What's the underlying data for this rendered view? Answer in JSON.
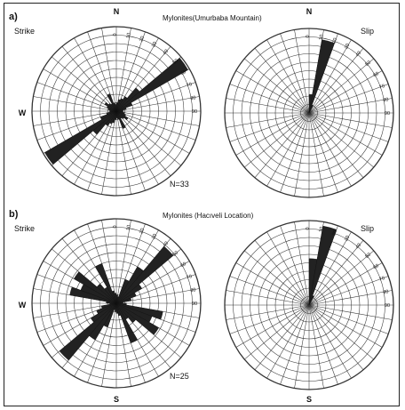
{
  "chart_data": [
    {
      "type": "rose",
      "panel_label": "a)",
      "subtitle": "Mylonites(Umurbaba Mountain)",
      "left_label": "Strike",
      "right_label": "Slip",
      "n_label": "N=33",
      "compass": {
        "north": "N",
        "west": "W",
        "south": ""
      },
      "tick_labels": [
        "0",
        "10",
        "20",
        "30",
        "40",
        "50",
        "60",
        "70",
        "80",
        "90"
      ],
      "strike_petals": [
        {
          "az": 5,
          "r": 0.1
        },
        {
          "az": 15,
          "r": 0.14
        },
        {
          "az": 25,
          "r": 0.16
        },
        {
          "az": 35,
          "r": 0.2
        },
        {
          "az": 45,
          "r": 0.36
        },
        {
          "az": 55,
          "r": 0.98
        },
        {
          "az": 65,
          "r": 0.2
        },
        {
          "az": 75,
          "r": 0.12
        },
        {
          "az": 85,
          "r": 0.08
        },
        {
          "az": 95,
          "r": 0.08
        },
        {
          "az": 105,
          "r": 0.1
        },
        {
          "az": 115,
          "r": 0.12
        },
        {
          "az": 125,
          "r": 0.16
        },
        {
          "az": 135,
          "r": 0.12
        },
        {
          "az": 145,
          "r": 0.1
        },
        {
          "az": 155,
          "r": 0.22
        },
        {
          "az": 165,
          "r": 0.1
        },
        {
          "az": 175,
          "r": 0.08
        },
        {
          "az": 185,
          "r": 0.1
        },
        {
          "az": 195,
          "r": 0.14
        },
        {
          "az": 205,
          "r": 0.16
        },
        {
          "az": 215,
          "r": 0.2
        },
        {
          "az": 225,
          "r": 0.36
        },
        {
          "az": 235,
          "r": 0.98
        },
        {
          "az": 245,
          "r": 0.2
        },
        {
          "az": 255,
          "r": 0.12
        },
        {
          "az": 265,
          "r": 0.08
        },
        {
          "az": 275,
          "r": 0.08
        },
        {
          "az": 285,
          "r": 0.1
        },
        {
          "az": 295,
          "r": 0.12
        },
        {
          "az": 305,
          "r": 0.16
        },
        {
          "az": 315,
          "r": 0.12
        },
        {
          "az": 325,
          "r": 0.1
        },
        {
          "az": 335,
          "r": 0.22
        },
        {
          "az": 345,
          "r": 0.1
        },
        {
          "az": 355,
          "r": 0.08
        }
      ],
      "slip_petals": [
        {
          "az": 5,
          "r": 0.22
        },
        {
          "az": 15,
          "r": 0.88
        },
        {
          "az": 25,
          "r": 0.1
        }
      ]
    },
    {
      "type": "rose",
      "panel_label": "b)",
      "subtitle": "Mylonites (Hacıveli Location)",
      "left_label": "Strike",
      "right_label": "Slip",
      "n_label": "N=25",
      "compass": {
        "north": "",
        "west": "W",
        "south": "S"
      },
      "tick_labels": [
        "0",
        "10",
        "20",
        "30",
        "40",
        "50",
        "60",
        "70",
        "80",
        "90"
      ],
      "strike_petals": [
        {
          "az": 5,
          "r": 0.1
        },
        {
          "az": 15,
          "r": 0.08
        },
        {
          "az": 25,
          "r": 0.3
        },
        {
          "az": 35,
          "r": 0.5
        },
        {
          "az": 45,
          "r": 0.88
        },
        {
          "az": 55,
          "r": 0.35
        },
        {
          "az": 65,
          "r": 0.25
        },
        {
          "az": 75,
          "r": 0.18
        },
        {
          "az": 85,
          "r": 0.08
        },
        {
          "az": 95,
          "r": 0.12
        },
        {
          "az": 105,
          "r": 0.56
        },
        {
          "az": 115,
          "r": 0.45
        },
        {
          "az": 125,
          "r": 0.58
        },
        {
          "az": 135,
          "r": 0.3
        },
        {
          "az": 145,
          "r": 0.22
        },
        {
          "az": 155,
          "r": 0.5
        },
        {
          "az": 165,
          "r": 0.15
        },
        {
          "az": 175,
          "r": 0.12
        },
        {
          "az": 185,
          "r": 0.1
        },
        {
          "az": 195,
          "r": 0.08
        },
        {
          "az": 205,
          "r": 0.3
        },
        {
          "az": 215,
          "r": 0.5
        },
        {
          "az": 225,
          "r": 0.88
        },
        {
          "az": 235,
          "r": 0.35
        },
        {
          "az": 245,
          "r": 0.25
        },
        {
          "az": 255,
          "r": 0.18
        },
        {
          "az": 265,
          "r": 0.08
        },
        {
          "az": 275,
          "r": 0.12
        },
        {
          "az": 285,
          "r": 0.56
        },
        {
          "az": 295,
          "r": 0.45
        },
        {
          "az": 305,
          "r": 0.58
        },
        {
          "az": 315,
          "r": 0.3
        },
        {
          "az": 325,
          "r": 0.22
        },
        {
          "az": 335,
          "r": 0.5
        },
        {
          "az": 345,
          "r": 0.15
        },
        {
          "az": 355,
          "r": 0.12
        }
      ],
      "slip_petals": [
        {
          "az": 5,
          "r": 0.55
        },
        {
          "az": 15,
          "r": 0.95
        },
        {
          "az": 25,
          "r": 0.12
        }
      ]
    }
  ]
}
